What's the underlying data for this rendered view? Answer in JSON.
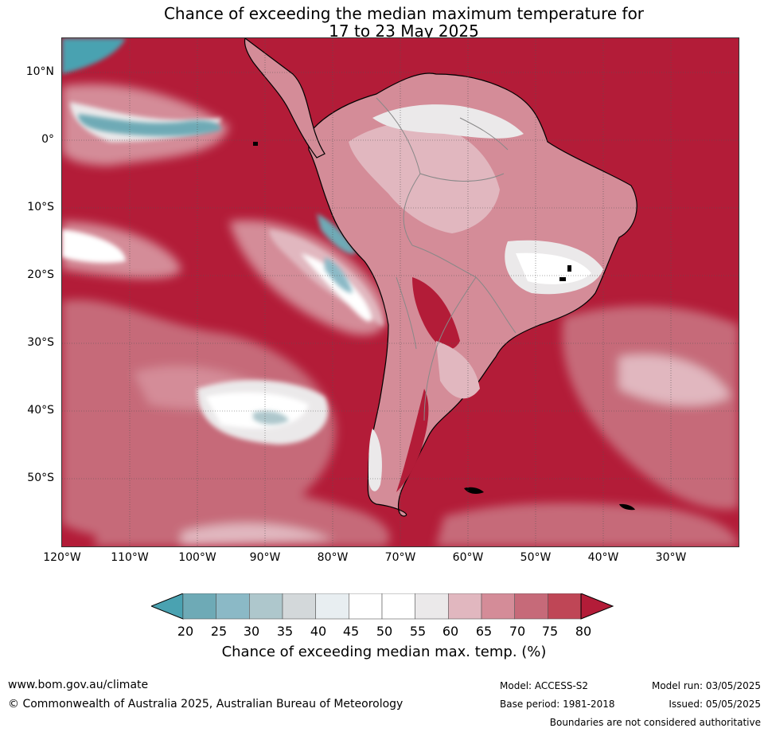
{
  "title": {
    "line1": "Chance of exceeding the median maximum temperature for",
    "line2": "17 to 23 May 2025"
  },
  "map": {
    "lat_labels": [
      "10°N",
      "0°",
      "10°S",
      "20°S",
      "30°S",
      "40°S",
      "50°S"
    ],
    "lon_labels": [
      "120°W",
      "110°W",
      "100°W",
      "90°W",
      "80°W",
      "70°W",
      "60°W",
      "50°W",
      "40°W",
      "30°W"
    ],
    "colors": {
      "ocean_high": "#b31c38",
      "land_border": "#000000",
      "country_border": "#888888"
    }
  },
  "colorbar": {
    "ticks": [
      "20",
      "25",
      "30",
      "35",
      "40",
      "45",
      "50",
      "55",
      "60",
      "65",
      "70",
      "75",
      "80"
    ],
    "colors": [
      "#4aa2b1",
      "#6eaab6",
      "#8bb9c6",
      "#aec7cc",
      "#d3d8da",
      "#e8eef1",
      "#ffffff",
      "#ffffff",
      "#ebe9ea",
      "#e1b7bf",
      "#d48c98",
      "#c66a79",
      "#bf4656",
      "#b31c38"
    ],
    "label": "Chance of exceeding median max. temp. (%)"
  },
  "footer": {
    "website": "www.bom.gov.au/climate",
    "copyright": "© Commonwealth of Australia 2025, Australian Bureau of Meteorology",
    "model": "Model: ACCESS-S2",
    "base_period": "Base period: 1981-2018",
    "model_run": "Model run: 03/05/2025",
    "issued": "Issued: 05/05/2025",
    "disclaimer": "Boundaries are not considered authoritative"
  }
}
